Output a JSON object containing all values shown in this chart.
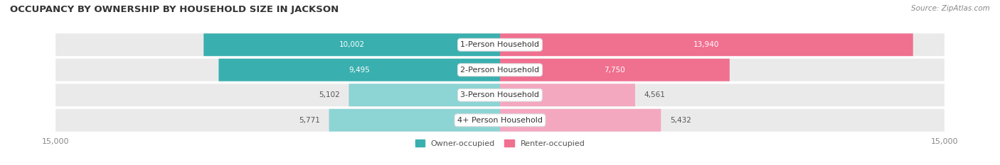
{
  "title": "OCCUPANCY BY OWNERSHIP BY HOUSEHOLD SIZE IN JACKSON",
  "source": "Source: ZipAtlas.com",
  "categories": [
    "1-Person Household",
    "2-Person Household",
    "3-Person Household",
    "4+ Person Household"
  ],
  "owner_values": [
    10002,
    9495,
    5102,
    5771
  ],
  "renter_values": [
    13940,
    7750,
    4561,
    5432
  ],
  "owner_colors": [
    "#3AAFAF",
    "#3AAFAF",
    "#8DD4D4",
    "#8DD4D4"
  ],
  "renter_colors": [
    "#F07090",
    "#F07090",
    "#F4A8C0",
    "#F4A8C0"
  ],
  "bar_background": "#EAEAEA",
  "max_value": 15000,
  "legend_owner": "Owner-occupied",
  "legend_renter": "Renter-occupied",
  "background_color": "#FFFFFF",
  "title_fontsize": 9.5,
  "source_fontsize": 7.5,
  "bar_label_fontsize": 7.5,
  "category_fontsize": 8,
  "axis_label_fontsize": 8,
  "owner_label_color_large": "#FFFFFF",
  "owner_label_color_small": "#555555",
  "renter_label_color_large": "#FFFFFF",
  "renter_label_color_small": "#555555",
  "large_threshold": 6000
}
